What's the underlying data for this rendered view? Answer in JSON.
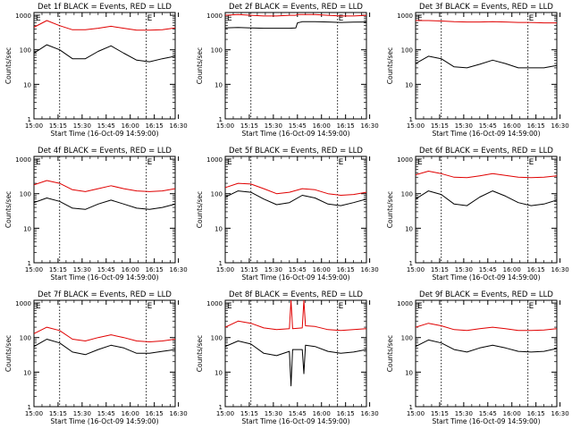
{
  "colors": {
    "events": "#000000",
    "lld": "#e00000",
    "axis": "#000000",
    "background": "#ffffff"
  },
  "shared": {
    "xlabel": "Start Time (16-Oct-09 14:59:00)",
    "ylabel": "Counts/sec",
    "xticks": [
      "15:00",
      "15:15",
      "15:30",
      "15:45",
      "16:00",
      "16:15",
      "16:30"
    ],
    "yticks": [
      "1",
      "10",
      "100",
      "1000"
    ],
    "marker_label": "E",
    "xlim_minutes_after_15_00": [
      0,
      88
    ],
    "ylim": [
      1,
      1200
    ],
    "y_scale": "log",
    "dotted_vertical_markers_minutes_after_15_00": [
      16,
      70
    ]
  },
  "chart_data": [
    {
      "type": "line",
      "title": "Det 1f BLACK = Events, RED = LLD",
      "x": [
        0,
        8,
        16,
        24,
        32,
        40,
        48,
        56,
        64,
        72,
        80,
        88
      ],
      "series": [
        {
          "color": "events",
          "values": [
            80,
            140,
            100,
            55,
            55,
            90,
            130,
            80,
            50,
            45,
            55,
            65
          ]
        },
        {
          "color": "lld",
          "values": [
            450,
            700,
            500,
            380,
            380,
            420,
            480,
            420,
            370,
            370,
            380,
            430
          ]
        }
      ]
    },
    {
      "type": "line",
      "title": "Det 2f BLACK = Events, RED = LLD",
      "x": [
        0,
        8,
        16,
        24,
        32,
        40,
        44,
        45,
        48,
        56,
        64,
        72,
        80,
        88
      ],
      "series": [
        {
          "color": "events",
          "values": [
            430,
            440,
            430,
            420,
            420,
            420,
            430,
            600,
            650,
            650,
            640,
            620,
            630,
            640
          ]
        },
        {
          "color": "lld",
          "values": [
            1000,
            1050,
            1000,
            950,
            950,
            1000,
            1000,
            1050,
            1050,
            1050,
            1000,
            950,
            950,
            1000
          ]
        }
      ]
    },
    {
      "type": "line",
      "title": "Det 3f BLACK = Events, RED = LLD",
      "x": [
        0,
        8,
        16,
        24,
        32,
        40,
        48,
        56,
        64,
        72,
        80,
        88
      ],
      "series": [
        {
          "color": "events",
          "values": [
            40,
            65,
            55,
            32,
            30,
            38,
            50,
            40,
            30,
            30,
            30,
            35
          ]
        },
        {
          "color": "lld",
          "values": [
            700,
            700,
            680,
            650,
            640,
            640,
            650,
            640,
            620,
            620,
            600,
            600
          ]
        }
      ]
    },
    {
      "type": "line",
      "title": "Det 4f BLACK = Events, RED = LLD",
      "x": [
        0,
        8,
        16,
        24,
        32,
        40,
        48,
        56,
        64,
        72,
        80,
        88
      ],
      "series": [
        {
          "color": "events",
          "values": [
            55,
            75,
            60,
            38,
            35,
            50,
            65,
            50,
            38,
            35,
            40,
            50
          ]
        },
        {
          "color": "lld",
          "values": [
            180,
            240,
            200,
            130,
            115,
            140,
            170,
            140,
            120,
            115,
            120,
            140
          ]
        }
      ]
    },
    {
      "type": "line",
      "title": "Det 5f BLACK = Events, RED = LLD",
      "x": [
        0,
        8,
        16,
        24,
        32,
        40,
        48,
        56,
        64,
        72,
        80,
        88
      ],
      "series": [
        {
          "color": "events",
          "values": [
            80,
            120,
            110,
            70,
            48,
            55,
            90,
            75,
            50,
            45,
            55,
            70
          ]
        },
        {
          "color": "lld",
          "values": [
            150,
            200,
            190,
            140,
            100,
            110,
            140,
            130,
            100,
            90,
            95,
            110
          ]
        }
      ]
    },
    {
      "type": "line",
      "title": "Det 6f BLACK = Events, RED = LLD",
      "x": [
        0,
        8,
        16,
        24,
        32,
        40,
        48,
        56,
        64,
        72,
        80,
        88
      ],
      "series": [
        {
          "color": "events",
          "values": [
            70,
            120,
            95,
            50,
            45,
            80,
            120,
            85,
            55,
            45,
            50,
            65
          ]
        },
        {
          "color": "lld",
          "values": [
            350,
            450,
            380,
            300,
            290,
            330,
            380,
            340,
            300,
            290,
            300,
            330
          ]
        }
      ]
    },
    {
      "type": "line",
      "title": "Det 7f BLACK = Events, RED = LLD",
      "x": [
        0,
        8,
        16,
        24,
        32,
        40,
        48,
        56,
        64,
        72,
        80,
        88
      ],
      "series": [
        {
          "color": "events",
          "values": [
            55,
            90,
            70,
            38,
            32,
            45,
            60,
            50,
            35,
            35,
            40,
            45
          ]
        },
        {
          "color": "lld",
          "values": [
            130,
            200,
            160,
            90,
            80,
            100,
            120,
            100,
            80,
            75,
            80,
            90
          ]
        }
      ]
    },
    {
      "type": "line",
      "title": "Det 8f BLACK = Events, RED = LLD",
      "x": [
        0,
        8,
        16,
        24,
        32,
        40,
        41,
        42,
        48,
        49,
        50,
        56,
        64,
        72,
        80,
        88
      ],
      "series": [
        {
          "color": "events",
          "values": [
            55,
            80,
            65,
            35,
            30,
            40,
            4,
            45,
            45,
            9,
            60,
            55,
            40,
            35,
            38,
            45
          ]
        },
        {
          "color": "lld",
          "values": [
            200,
            300,
            260,
            190,
            170,
            180,
            1200,
            180,
            190,
            1200,
            220,
            210,
            170,
            160,
            170,
            180
          ]
        }
      ]
    },
    {
      "type": "line",
      "title": "Det 9f BLACK = Events, RED = LLD",
      "x": [
        0,
        8,
        16,
        24,
        32,
        40,
        48,
        56,
        64,
        72,
        80,
        88
      ],
      "series": [
        {
          "color": "events",
          "values": [
            55,
            85,
            70,
            45,
            38,
            50,
            60,
            50,
            40,
            38,
            40,
            48
          ]
        },
        {
          "color": "lld",
          "values": [
            200,
            260,
            220,
            170,
            160,
            180,
            200,
            180,
            160,
            160,
            165,
            180
          ]
        }
      ]
    }
  ]
}
